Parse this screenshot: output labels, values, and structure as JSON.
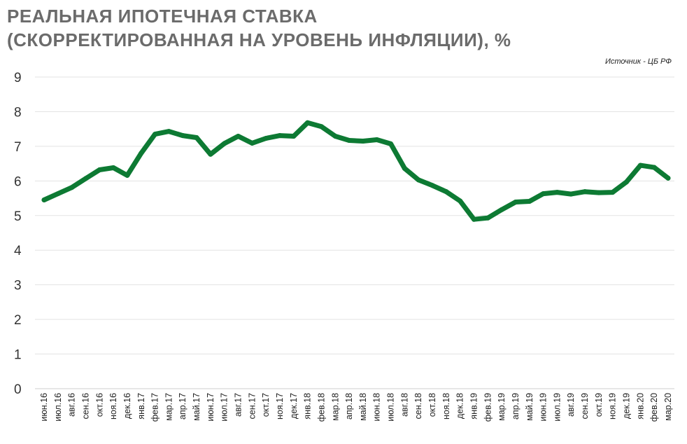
{
  "title_line1": "РЕАЛЬНАЯ ИПОТЕЧНАЯ СТАВКА",
  "title_line2": "(СКОРРЕКТИРОВАННАЯ НА УРОВЕНЬ  ИНФЛЯЦИИ), %",
  "source": "Источник  - ЦБ РФ",
  "colors": {
    "line": "#0d7a33",
    "grid": "#e3e3e3",
    "axis": "#cfcfcf"
  },
  "chart_data": {
    "type": "line",
    "title": "РЕАЛЬНАЯ ИПОТЕЧНАЯ СТАВКА (СКОРРЕКТИРОВАННАЯ НА УРОВЕНЬ  ИНФЛЯЦИИ), %",
    "xlabel": "",
    "ylabel": "",
    "ylim": [
      0,
      9
    ],
    "yticks": [
      0,
      1,
      2,
      3,
      4,
      5,
      6,
      7,
      8,
      9
    ],
    "grid": true,
    "legend": "none",
    "categories": [
      "июн.16",
      "июл.16",
      "авг.16",
      "сен.16",
      "окт.16",
      "ноя.16",
      "дек.16",
      "янв.17",
      "фев.17",
      "мар.17",
      "апр.17",
      "май.17",
      "июн.17",
      "июл.17",
      "авг.17",
      "сен.17",
      "окт.17",
      "ноя.17",
      "дек.17",
      "янв.18",
      "фев.18",
      "мар.18",
      "апр.18",
      "май.18",
      "июн.18",
      "июл.18",
      "авг.18",
      "сен.18",
      "окт.18",
      "ноя.18",
      "дек.18",
      "янв.19",
      "фев.19",
      "мар.19",
      "апр.19",
      "май.19",
      "июн.19",
      "июл.19",
      "авг.19",
      "сен.19",
      "окт.19",
      "ноя.19",
      "дек.19",
      "янв.20",
      "фев.20",
      "мар.20"
    ],
    "series": [
      {
        "values": [
          5.45,
          5.63,
          5.81,
          6.07,
          6.32,
          6.38,
          6.16,
          6.8,
          7.35,
          7.43,
          7.31,
          7.25,
          6.77,
          7.08,
          7.29,
          7.09,
          7.23,
          7.31,
          7.29,
          7.68,
          7.57,
          7.29,
          7.17,
          7.15,
          7.19,
          7.07,
          6.36,
          6.03,
          5.87,
          5.69,
          5.42,
          4.89,
          4.93,
          5.17,
          5.39,
          5.41,
          5.63,
          5.67,
          5.62,
          5.69,
          5.66,
          5.67,
          5.97,
          6.45,
          6.39,
          6.08
        ]
      }
    ]
  }
}
